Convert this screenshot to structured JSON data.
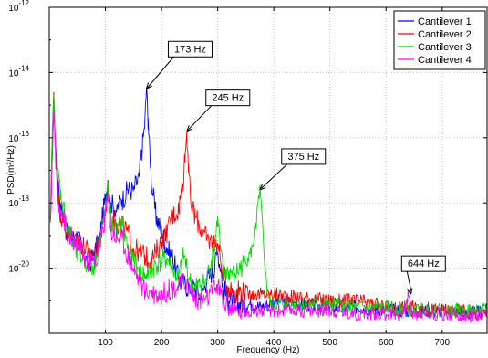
{
  "chart_data": {
    "type": "line",
    "xlabel": "Frequency (Hz)",
    "ylabel": "PSD(m²/Hz)",
    "xlim": [
      0,
      780
    ],
    "ylim": [
      1e-22,
      1e-12
    ],
    "yscale": "log",
    "grid": true,
    "legend_position": "top-right",
    "x_ticks": [
      100,
      200,
      300,
      400,
      500,
      600,
      700
    ],
    "x_tick_labels": [
      "100",
      "200",
      "300",
      "400",
      "500",
      "600",
      "700"
    ],
    "y_ticks": [
      1e-12,
      1e-14,
      1e-16,
      1e-18,
      1e-20
    ],
    "y_tick_bases": [
      "10",
      "10",
      "10",
      "10",
      "10"
    ],
    "y_tick_exponents": [
      "-12",
      "-14",
      "-16",
      "-18",
      "-20"
    ],
    "series": [
      {
        "name": "Cantilever 1",
        "color": "#0000ff",
        "points": [
          [
            2,
            -18.5
          ],
          [
            5,
            -16.6
          ],
          [
            8,
            -14.9
          ],
          [
            11,
            -16.1
          ],
          [
            15,
            -17.3
          ],
          [
            20,
            -18.0
          ],
          [
            25,
            -18.4
          ],
          [
            30,
            -18.9
          ],
          [
            40,
            -19.1
          ],
          [
            50,
            -19.0
          ],
          [
            60,
            -19.5
          ],
          [
            70,
            -19.9
          ],
          [
            80,
            -19.6
          ],
          [
            90,
            -19.0
          ],
          [
            100,
            -17.8
          ],
          [
            105,
            -17.3
          ],
          [
            110,
            -18.0
          ],
          [
            120,
            -18.2
          ],
          [
            130,
            -17.9
          ],
          [
            140,
            -17.6
          ],
          [
            150,
            -17.6
          ],
          [
            160,
            -17.2
          ],
          [
            165,
            -16.4
          ],
          [
            170,
            -15.6
          ],
          [
            173,
            -14.5
          ],
          [
            176,
            -15.4
          ],
          [
            180,
            -16.9
          ],
          [
            185,
            -17.8
          ],
          [
            190,
            -18.4
          ],
          [
            200,
            -18.9
          ],
          [
            210,
            -19.4
          ],
          [
            220,
            -19.7
          ],
          [
            230,
            -20.3
          ],
          [
            240,
            -20.5
          ],
          [
            250,
            -20.6
          ],
          [
            260,
            -20.6
          ],
          [
            270,
            -20.9
          ],
          [
            280,
            -20.4
          ],
          [
            290,
            -20.1
          ],
          [
            295,
            -19.9
          ],
          [
            300,
            -19.5
          ],
          [
            305,
            -20.0
          ],
          [
            310,
            -20.6
          ],
          [
            320,
            -21.0
          ],
          [
            330,
            -21.1
          ],
          [
            340,
            -21.1
          ],
          [
            360,
            -21.1
          ],
          [
            380,
            -21.2
          ],
          [
            400,
            -21.0
          ],
          [
            450,
            -21.1
          ],
          [
            500,
            -21.2
          ],
          [
            550,
            -21.2
          ],
          [
            600,
            -21.3
          ],
          [
            650,
            -21.3
          ],
          [
            700,
            -21.3
          ],
          [
            750,
            -21.4
          ],
          [
            780,
            -21.3
          ]
        ]
      },
      {
        "name": "Cantilever 2",
        "color": "#ff0000",
        "points": [
          [
            2,
            -18.5
          ],
          [
            5,
            -16.4
          ],
          [
            8,
            -14.6
          ],
          [
            11,
            -16.0
          ],
          [
            15,
            -17.7
          ],
          [
            20,
            -18.3
          ],
          [
            30,
            -18.9
          ],
          [
            40,
            -19.1
          ],
          [
            50,
            -19.1
          ],
          [
            60,
            -19.3
          ],
          [
            70,
            -19.5
          ],
          [
            80,
            -19.5
          ],
          [
            90,
            -19.2
          ],
          [
            100,
            -18.3
          ],
          [
            105,
            -17.6
          ],
          [
            110,
            -18.5
          ],
          [
            120,
            -18.6
          ],
          [
            130,
            -18.7
          ],
          [
            140,
            -18.9
          ],
          [
            150,
            -19.4
          ],
          [
            160,
            -19.5
          ],
          [
            170,
            -19.6
          ],
          [
            180,
            -19.8
          ],
          [
            190,
            -19.5
          ],
          [
            200,
            -19.2
          ],
          [
            210,
            -18.9
          ],
          [
            220,
            -18.4
          ],
          [
            230,
            -18.2
          ],
          [
            238,
            -17.4
          ],
          [
            242,
            -16.5
          ],
          [
            245,
            -15.8
          ],
          [
            248,
            -16.8
          ],
          [
            252,
            -18.0
          ],
          [
            260,
            -18.4
          ],
          [
            270,
            -18.8
          ],
          [
            280,
            -19.1
          ],
          [
            290,
            -19.2
          ],
          [
            300,
            -19.3
          ],
          [
            310,
            -20.2
          ],
          [
            320,
            -20.6
          ],
          [
            330,
            -20.7
          ],
          [
            340,
            -20.7
          ],
          [
            360,
            -20.8
          ],
          [
            380,
            -20.8
          ],
          [
            400,
            -20.8
          ],
          [
            450,
            -20.9
          ],
          [
            500,
            -21.0
          ],
          [
            550,
            -21.0
          ],
          [
            600,
            -21.2
          ],
          [
            650,
            -21.2
          ],
          [
            700,
            -21.3
          ],
          [
            750,
            -21.3
          ],
          [
            780,
            -21.4
          ]
        ]
      },
      {
        "name": "Cantilever 3",
        "color": "#00dd00",
        "points": [
          [
            2,
            -18.3
          ],
          [
            5,
            -16.2
          ],
          [
            8,
            -14.7
          ],
          [
            11,
            -16.0
          ],
          [
            15,
            -17.0
          ],
          [
            20,
            -17.6
          ],
          [
            30,
            -18.6
          ],
          [
            40,
            -19.2
          ],
          [
            50,
            -19.6
          ],
          [
            60,
            -19.7
          ],
          [
            70,
            -19.9
          ],
          [
            80,
            -19.9
          ],
          [
            90,
            -19.3
          ],
          [
            100,
            -18.1
          ],
          [
            105,
            -17.5
          ],
          [
            110,
            -18.6
          ],
          [
            120,
            -18.9
          ],
          [
            130,
            -18.6
          ],
          [
            140,
            -19.4
          ],
          [
            150,
            -19.8
          ],
          [
            160,
            -20.1
          ],
          [
            170,
            -20.2
          ],
          [
            180,
            -20.1
          ],
          [
            190,
            -19.9
          ],
          [
            200,
            -19.8
          ],
          [
            210,
            -19.7
          ],
          [
            220,
            -20.1
          ],
          [
            230,
            -20.3
          ],
          [
            240,
            -19.6
          ],
          [
            250,
            -20.4
          ],
          [
            260,
            -20.6
          ],
          [
            270,
            -20.5
          ],
          [
            280,
            -20.4
          ],
          [
            290,
            -19.7
          ],
          [
            295,
            -19.3
          ],
          [
            300,
            -18.4
          ],
          [
            305,
            -19.4
          ],
          [
            310,
            -20.2
          ],
          [
            320,
            -20.1
          ],
          [
            330,
            -20.2
          ],
          [
            340,
            -20.0
          ],
          [
            350,
            -19.8
          ],
          [
            360,
            -19.5
          ],
          [
            368,
            -18.8
          ],
          [
            372,
            -18.0
          ],
          [
            375,
            -17.6
          ],
          [
            378,
            -18.2
          ],
          [
            382,
            -19.4
          ],
          [
            388,
            -20.7
          ],
          [
            395,
            -21.1
          ],
          [
            400,
            -21.1
          ],
          [
            450,
            -21.1
          ],
          [
            500,
            -21.1
          ],
          [
            550,
            -21.2
          ],
          [
            600,
            -21.2
          ],
          [
            650,
            -21.3
          ],
          [
            700,
            -21.3
          ],
          [
            750,
            -21.3
          ],
          [
            780,
            -21.3
          ]
        ]
      },
      {
        "name": "Cantilever 4",
        "color": "#ff00ff",
        "points": [
          [
            2,
            -18.6
          ],
          [
            5,
            -16.8
          ],
          [
            8,
            -15.2
          ],
          [
            11,
            -16.6
          ],
          [
            15,
            -17.8
          ],
          [
            20,
            -18.2
          ],
          [
            30,
            -18.7
          ],
          [
            40,
            -19.1
          ],
          [
            50,
            -19.3
          ],
          [
            60,
            -19.6
          ],
          [
            70,
            -19.8
          ],
          [
            80,
            -19.8
          ],
          [
            90,
            -19.2
          ],
          [
            100,
            -18.4
          ],
          [
            105,
            -17.8
          ],
          [
            110,
            -18.9
          ],
          [
            120,
            -19.0
          ],
          [
            130,
            -19.1
          ],
          [
            140,
            -19.6
          ],
          [
            150,
            -20.0
          ],
          [
            160,
            -20.4
          ],
          [
            170,
            -20.7
          ],
          [
            180,
            -20.7
          ],
          [
            190,
            -20.8
          ],
          [
            200,
            -20.8
          ],
          [
            210,
            -20.7
          ],
          [
            220,
            -20.6
          ],
          [
            230,
            -20.6
          ],
          [
            240,
            -20.4
          ],
          [
            250,
            -20.6
          ],
          [
            260,
            -20.9
          ],
          [
            270,
            -21.0
          ],
          [
            280,
            -20.9
          ],
          [
            290,
            -20.8
          ],
          [
            300,
            -20.5
          ],
          [
            310,
            -21.0
          ],
          [
            320,
            -21.2
          ],
          [
            330,
            -21.3
          ],
          [
            340,
            -21.3
          ],
          [
            360,
            -21.3
          ],
          [
            380,
            -21.3
          ],
          [
            400,
            -21.3
          ],
          [
            450,
            -21.3
          ],
          [
            500,
            -21.3
          ],
          [
            550,
            -21.4
          ],
          [
            600,
            -21.4
          ],
          [
            630,
            -21.4
          ],
          [
            640,
            -20.8
          ],
          [
            645,
            -21.3
          ],
          [
            650,
            -21.4
          ],
          [
            700,
            -21.4
          ],
          [
            750,
            -21.5
          ],
          [
            780,
            -21.5
          ]
        ]
      }
    ],
    "annotations": [
      {
        "label": "173 Hz",
        "x": 173,
        "y_exp": -14.5
      },
      {
        "label": "245 Hz",
        "x": 245,
        "y_exp": -15.8
      },
      {
        "label": "375 Hz",
        "x": 375,
        "y_exp": -17.6
      },
      {
        "label": "644 Hz",
        "x": 644,
        "y_exp": -20.8
      }
    ]
  }
}
